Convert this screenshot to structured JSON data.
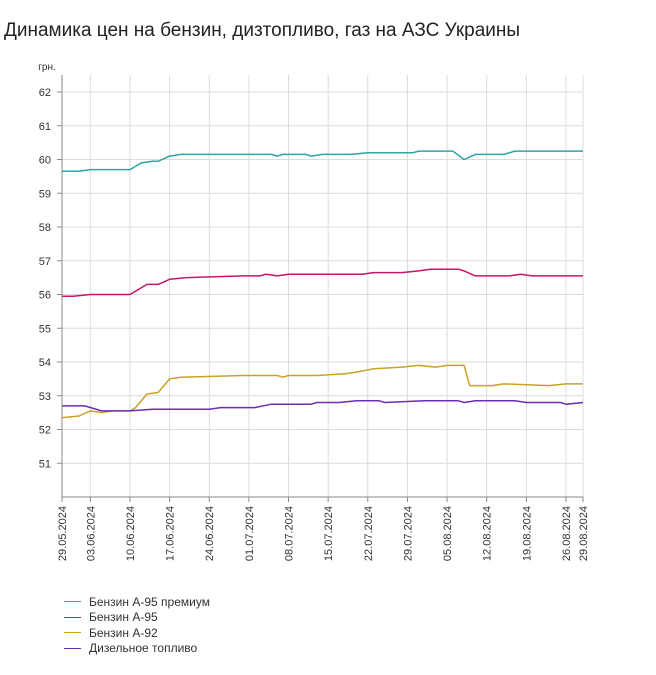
{
  "title": "Динамика цен на бензин, дизтопливо, газ на АЗС Украины",
  "chart_data": {
    "type": "line",
    "title": "Динамика цен на бензин, дизтопливо, газ на АЗС Украины",
    "ylabel": "грн.",
    "xlabel": "",
    "ylim": [
      50,
      62
    ],
    "yticks": [
      51,
      52,
      53,
      54,
      55,
      56,
      57,
      58,
      59,
      60,
      61,
      62
    ],
    "grid": true,
    "legend_position": "bottom-left",
    "x_start": "29.05.2024",
    "x_end": "29.08.2024",
    "x_ticks": [
      "29.05.2024",
      "03.06.2024",
      "10.06.2024",
      "17.06.2024",
      "24.06.2024",
      "01.07.2024",
      "08.07.2024",
      "15.07.2024",
      "22.07.2024",
      "29.07.2024",
      "05.08.2024",
      "12.08.2024",
      "19.08.2024",
      "26.08.2024",
      "29.08.2024"
    ],
    "series": [
      {
        "name": "Бензин А-95 премиум",
        "color": "#2ba6a0",
        "points": [
          [
            "29.05.2024",
            59.65
          ],
          [
            "01.06.2024",
            59.65
          ],
          [
            "03.06.2024",
            59.7
          ],
          [
            "10.06.2024",
            59.7
          ],
          [
            "12.06.2024",
            59.9
          ],
          [
            "14.06.2024",
            59.95
          ],
          [
            "15.06.2024",
            59.95
          ],
          [
            "17.06.2024",
            60.1
          ],
          [
            "19.06.2024",
            60.15
          ],
          [
            "30.06.2024",
            60.15
          ],
          [
            "05.07.2024",
            60.15
          ],
          [
            "06.07.2024",
            60.1
          ],
          [
            "07.07.2024",
            60.15
          ],
          [
            "11.07.2024",
            60.15
          ],
          [
            "12.07.2024",
            60.1
          ],
          [
            "14.07.2024",
            60.15
          ],
          [
            "19.07.2024",
            60.15
          ],
          [
            "22.07.2024",
            60.2
          ],
          [
            "30.07.2024",
            60.2
          ],
          [
            "31.07.2024",
            60.25
          ],
          [
            "04.08.2024",
            60.25
          ],
          [
            "06.08.2024",
            60.25
          ],
          [
            "08.08.2024",
            60.0
          ],
          [
            "10.08.2024",
            60.15
          ],
          [
            "15.08.2024",
            60.15
          ],
          [
            "17.08.2024",
            60.25
          ],
          [
            "29.08.2024",
            60.25
          ]
        ]
      },
      {
        "name": "Бензин А-95",
        "color": "#c2186b",
        "points": [
          [
            "29.05.2024",
            55.95
          ],
          [
            "31.05.2024",
            55.95
          ],
          [
            "03.06.2024",
            56.0
          ],
          [
            "10.06.2024",
            56.0
          ],
          [
            "13.06.2024",
            56.3
          ],
          [
            "15.06.2024",
            56.3
          ],
          [
            "17.06.2024",
            56.45
          ],
          [
            "20.06.2024",
            56.5
          ],
          [
            "30.06.2024",
            56.55
          ],
          [
            "03.07.2024",
            56.55
          ],
          [
            "04.07.2024",
            56.6
          ],
          [
            "06.07.2024",
            56.55
          ],
          [
            "08.07.2024",
            56.6
          ],
          [
            "21.07.2024",
            56.6
          ],
          [
            "23.07.2024",
            56.65
          ],
          [
            "28.07.2024",
            56.65
          ],
          [
            "31.07.2024",
            56.7
          ],
          [
            "02.08.2024",
            56.75
          ],
          [
            "07.08.2024",
            56.75
          ],
          [
            "08.08.2024",
            56.7
          ],
          [
            "10.08.2024",
            56.55
          ],
          [
            "16.08.2024",
            56.55
          ],
          [
            "18.08.2024",
            56.6
          ],
          [
            "20.08.2024",
            56.55
          ],
          [
            "29.08.2024",
            56.55
          ]
        ]
      },
      {
        "name": "Бензин А-92",
        "color": "#c9a227",
        "points": [
          [
            "29.05.2024",
            52.35
          ],
          [
            "01.06.2024",
            52.4
          ],
          [
            "03.06.2024",
            52.55
          ],
          [
            "05.06.2024",
            52.5
          ],
          [
            "07.06.2024",
            52.55
          ],
          [
            "10.06.2024",
            52.55
          ],
          [
            "11.06.2024",
            52.65
          ],
          [
            "13.06.2024",
            53.05
          ],
          [
            "15.06.2024",
            53.1
          ],
          [
            "17.06.2024",
            53.5
          ],
          [
            "19.06.2024",
            53.55
          ],
          [
            "30.06.2024",
            53.6
          ],
          [
            "06.07.2024",
            53.6
          ],
          [
            "07.07.2024",
            53.55
          ],
          [
            "08.07.2024",
            53.6
          ],
          [
            "11.07.2024",
            53.6
          ],
          [
            "13.07.2024",
            53.6
          ],
          [
            "18.07.2024",
            53.65
          ],
          [
            "20.07.2024",
            53.7
          ],
          [
            "23.07.2024",
            53.8
          ],
          [
            "28.07.2024",
            53.85
          ],
          [
            "31.07.2024",
            53.9
          ],
          [
            "03.08.2024",
            53.85
          ],
          [
            "05.08.2024",
            53.9
          ],
          [
            "08.08.2024",
            53.9
          ],
          [
            "09.08.2024",
            53.3
          ],
          [
            "13.08.2024",
            53.3
          ],
          [
            "15.08.2024",
            53.35
          ],
          [
            "23.08.2024",
            53.3
          ],
          [
            "26.08.2024",
            53.35
          ],
          [
            "29.08.2024",
            53.35
          ]
        ]
      },
      {
        "name": "Дизельное топливо",
        "color": "#6a2fb3",
        "points": [
          [
            "29.05.2024",
            52.7
          ],
          [
            "02.06.2024",
            52.7
          ],
          [
            "05.06.2024",
            52.55
          ],
          [
            "10.06.2024",
            52.55
          ],
          [
            "14.06.2024",
            52.6
          ],
          [
            "24.06.2024",
            52.6
          ],
          [
            "26.06.2024",
            52.65
          ],
          [
            "02.07.2024",
            52.65
          ],
          [
            "05.07.2024",
            52.75
          ],
          [
            "12.07.2024",
            52.75
          ],
          [
            "13.07.2024",
            52.8
          ],
          [
            "17.07.2024",
            52.8
          ],
          [
            "20.07.2024",
            52.85
          ],
          [
            "24.07.2024",
            52.85
          ],
          [
            "25.07.2024",
            52.8
          ],
          [
            "01.08.2024",
            52.85
          ],
          [
            "07.08.2024",
            52.85
          ],
          [
            "08.08.2024",
            52.8
          ],
          [
            "10.08.2024",
            52.85
          ],
          [
            "17.08.2024",
            52.85
          ],
          [
            "19.08.2024",
            52.8
          ],
          [
            "25.08.2024",
            52.8
          ],
          [
            "26.08.2024",
            52.75
          ],
          [
            "29.08.2024",
            52.8
          ]
        ]
      }
    ]
  }
}
